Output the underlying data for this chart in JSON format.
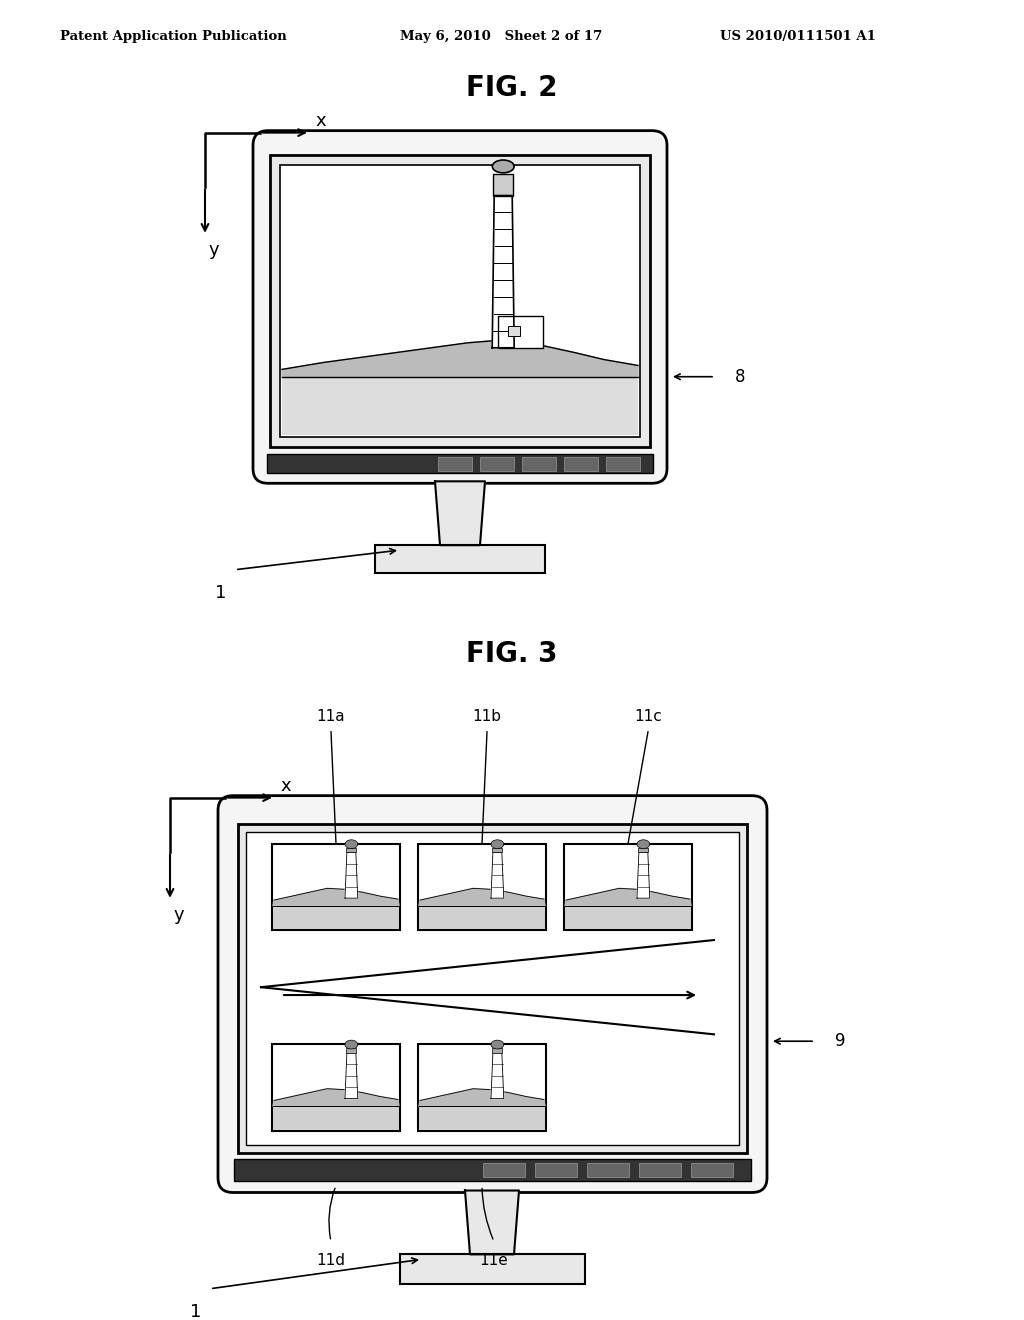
{
  "bg_color": "#ffffff",
  "header_left": "Patent Application Publication",
  "header_mid": "May 6, 2010   Sheet 2 of 17",
  "header_right": "US 2010/0111501 A1",
  "fig2_title": "FIG. 2",
  "fig3_title": "FIG. 3",
  "label_1_fig2": "1",
  "label_8": "8",
  "label_1_fig3": "1",
  "label_9": "9",
  "label_11a": "11a",
  "label_11b": "11b",
  "label_11c": "11c",
  "label_11d": "11d",
  "label_11e": "11e",
  "monitor_fill": "#f5f5f5",
  "screen_fill": "#ffffff",
  "bezel_fill": "#e8e8e8",
  "statusbar_fill": "#333333",
  "statusbtn_fill": "#666666"
}
